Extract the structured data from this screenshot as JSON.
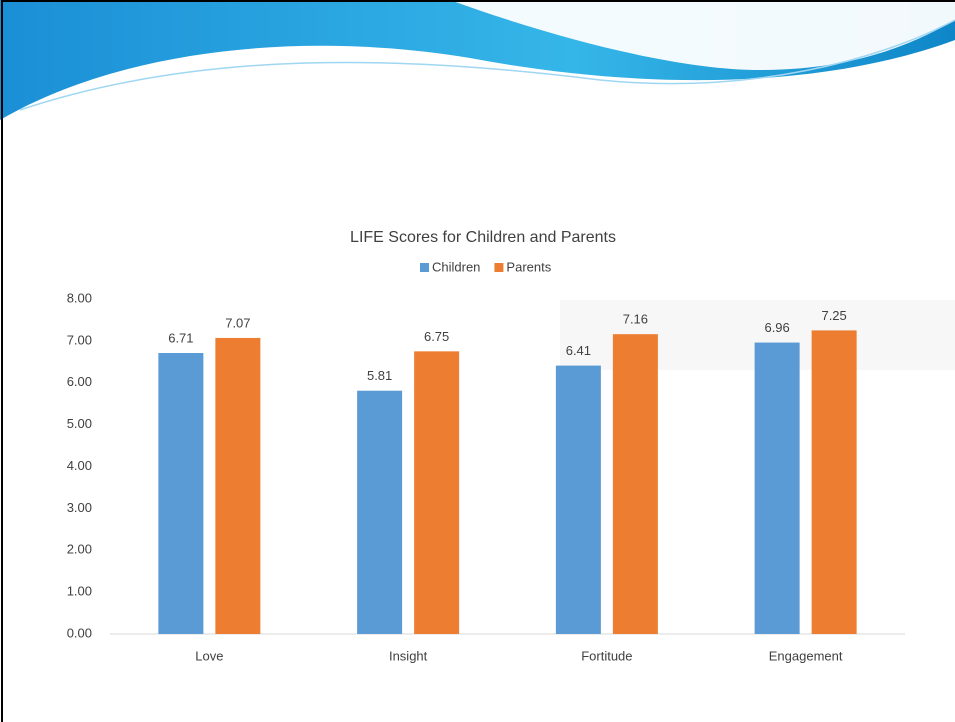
{
  "chart_data": {
    "type": "bar",
    "title": "LIFE Scores for Children and Parents",
    "categories": [
      "Love",
      "Insight",
      "Fortitude",
      "Engagement"
    ],
    "series": [
      {
        "name": "Children",
        "color": "#5b9bd5",
        "values": [
          6.71,
          5.81,
          6.41,
          6.96
        ]
      },
      {
        "name": "Parents",
        "color": "#ed7d31",
        "values": [
          7.07,
          6.75,
          7.16,
          7.25
        ]
      }
    ],
    "ylim": [
      0,
      8
    ],
    "yticks": [
      {
        "value": 0,
        "label": "0.00"
      },
      {
        "value": 1,
        "label": "1.00"
      },
      {
        "value": 2,
        "label": "2.00"
      },
      {
        "value": 3,
        "label": "3.00"
      },
      {
        "value": 4,
        "label": "4.00"
      },
      {
        "value": 5,
        "label": "5.00"
      },
      {
        "value": 6,
        "label": "6.00"
      },
      {
        "value": 7,
        "label": "7.00"
      },
      {
        "value": 8,
        "label": "8.00"
      }
    ],
    "grid": false,
    "legend": "top"
  }
}
